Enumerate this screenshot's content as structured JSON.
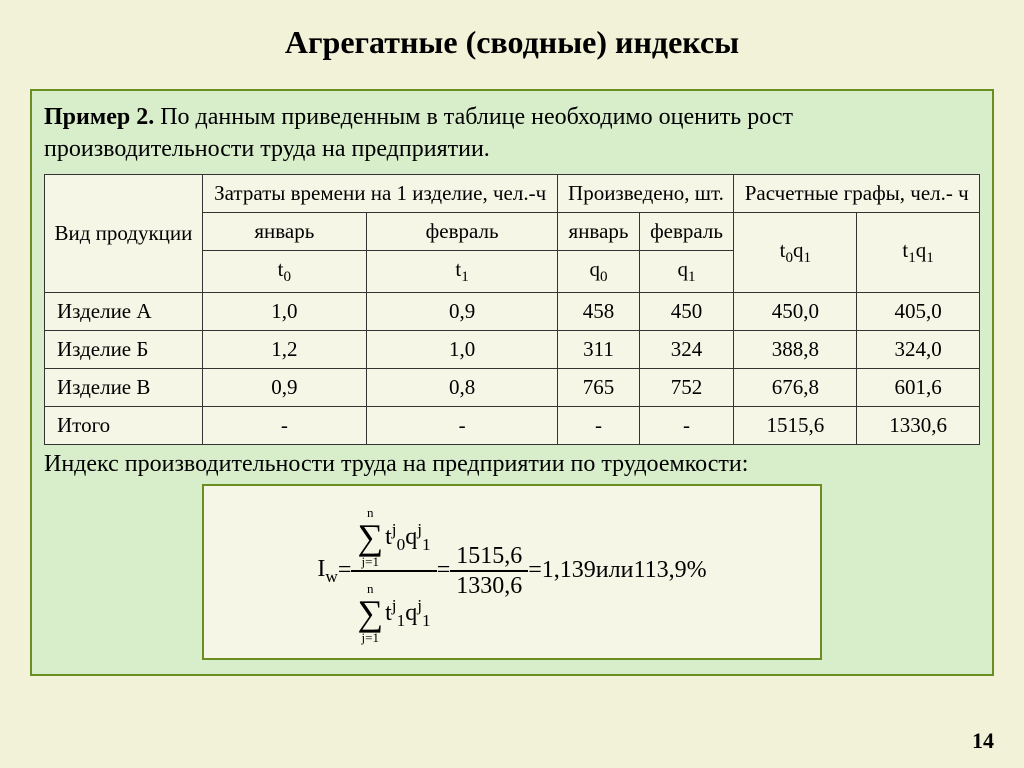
{
  "slide": {
    "title": "Агрегатные (сводные) индексы",
    "example_label": "Пример 2.",
    "example_text": " По данным приведенным в таблице необходимо оценить рост производительности труда на предприятии.",
    "caption": "Индекс производительности труда на предприятии по трудоемкости:",
    "page_number": "14"
  },
  "table": {
    "col_product": "Вид продукции",
    "group1": "Затраты времени на 1 изделие, чел.-ч",
    "group2": "Произведено, шт.",
    "group3": "Расчетные графы, чел.- ч",
    "sub_jan": "январь",
    "sub_feb": "февраль",
    "sub_t0": "t",
    "sub_t0s": "0",
    "sub_t1": "t",
    "sub_t1s": "1",
    "sub_q0": "q",
    "sub_q0s": "0",
    "sub_q1": "q",
    "sub_q1s": "1",
    "sub_t0q1_a": "t",
    "sub_t0q1_as": "0",
    "sub_t0q1_b": "q",
    "sub_t0q1_bs": "1",
    "sub_t1q1_a": "t",
    "sub_t1q1_as": "1",
    "sub_t1q1_b": "q",
    "sub_t1q1_bs": "1",
    "rows": [
      {
        "name": "Изделие А",
        "t0": "1,0",
        "t1": "0,9",
        "q0": "458",
        "q1": "450",
        "c1": "450,0",
        "c2": "405,0"
      },
      {
        "name": "Изделие Б",
        "t0": "1,2",
        "t1": "1,0",
        "q0": "311",
        "q1": "324",
        "c1": "388,8",
        "c2": "324,0"
      },
      {
        "name": "Изделие В",
        "t0": "0,9",
        "t1": "0,8",
        "q0": "765",
        "q1": "752",
        "c1": "676,8",
        "c2": "601,6"
      },
      {
        "name": "Итого",
        "t0": "-",
        "t1": "-",
        "q0": "-",
        "q1": "-",
        "c1": "1515,6",
        "c2": "1330,6"
      }
    ]
  },
  "formula": {
    "lhs": "I",
    "lhs_sub": "w",
    "eq": " = ",
    "lim_top": "n",
    "lim_bot": "j=1",
    "num_a": "t",
    "num_as": "0",
    "num_aj": "j",
    "num_b": "q",
    "num_bs": "1",
    "num_bj": "j",
    "den_a": "t",
    "den_as": "1",
    "den_aj": "j",
    "den_b": "q",
    "den_bs": "1",
    "den_bj": "j",
    "eq2": " = ",
    "val_num": "1515,6",
    "val_den": "1330,6",
    "eq3": " = ",
    "result": "1,139",
    "or": "  или  ",
    "percent": "113,9%"
  }
}
